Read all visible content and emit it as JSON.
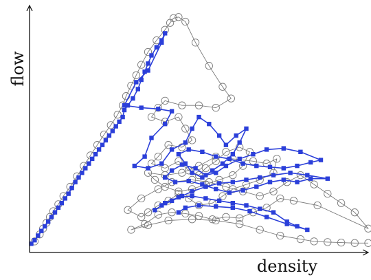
{
  "chart_data": {
    "type": "line",
    "title": "",
    "xlabel": "density",
    "ylabel": "flow",
    "xlim": [
      0,
      100
    ],
    "ylim": [
      0,
      100
    ],
    "xticks": [],
    "yticks": [],
    "grid": false,
    "legend": "none",
    "series": [
      {
        "key": "measured",
        "marker": "open-circle",
        "color": "#7a7a7a",
        "points": [
          [
            1.5,
            1.5
          ],
          [
            3.0,
            4.5
          ],
          [
            4.0,
            7.0
          ],
          [
            5.0,
            9.5
          ],
          [
            6.0,
            12.0
          ],
          [
            7.0,
            14.5
          ],
          [
            8.5,
            17.5
          ],
          [
            10.0,
            21.0
          ],
          [
            12.0,
            25.0
          ],
          [
            14.0,
            29.5
          ],
          [
            16.0,
            34.0
          ],
          [
            18.0,
            38.5
          ],
          [
            20.0,
            43.0
          ],
          [
            22.0,
            47.5
          ],
          [
            24.0,
            51.5
          ],
          [
            26.0,
            56.0
          ],
          [
            27.5,
            60.0
          ],
          [
            28.5,
            64.0
          ],
          [
            30.0,
            68.5
          ],
          [
            31.5,
            73.0
          ],
          [
            33.0,
            77.5
          ],
          [
            35.0,
            83.0
          ],
          [
            37.5,
            88.0
          ],
          [
            40.0,
            92.5
          ],
          [
            41.5,
            95.5
          ],
          [
            42.5,
            97.5
          ],
          [
            44.0,
            98.0
          ],
          [
            46.0,
            96.0
          ],
          [
            49.0,
            87.0
          ],
          [
            53.0,
            77.0
          ],
          [
            57.0,
            68.0
          ],
          [
            59.5,
            63.0
          ],
          [
            55.0,
            59.0
          ],
          [
            50.0,
            60.0
          ],
          [
            45.0,
            60.0
          ],
          [
            40.0,
            62.0
          ],
          [
            38.0,
            59.0
          ],
          [
            36.0,
            55.0
          ],
          [
            40.0,
            53.0
          ],
          [
            44.0,
            55.0
          ],
          [
            46.0,
            50.0
          ],
          [
            48.0,
            45.0
          ],
          [
            45.0,
            42.0
          ],
          [
            41.0,
            43.0
          ],
          [
            38.0,
            38.0
          ],
          [
            36.0,
            35.0
          ],
          [
            40.0,
            33.0
          ],
          [
            44.0,
            36.0
          ],
          [
            47.0,
            32.0
          ],
          [
            50.0,
            30.0
          ],
          [
            52.0,
            33.0
          ],
          [
            55.0,
            36.0
          ],
          [
            58.0,
            40.0
          ],
          [
            62.0,
            42.0
          ],
          [
            65.0,
            40.0
          ],
          [
            63.0,
            34.0
          ],
          [
            60.0,
            30.0
          ],
          [
            56.0,
            28.0
          ],
          [
            52.0,
            26.0
          ],
          [
            48.0,
            24.0
          ],
          [
            44.0,
            23.0
          ],
          [
            40.0,
            25.0
          ],
          [
            37.0,
            28.0
          ],
          [
            35.0,
            31.0
          ],
          [
            40.0,
            30.0
          ],
          [
            45.0,
            31.0
          ],
          [
            50.0,
            34.0
          ],
          [
            55.0,
            38.0
          ],
          [
            60.0,
            37.0
          ],
          [
            66.0,
            36.0
          ],
          [
            70.0,
            35.0
          ],
          [
            73.0,
            37.0
          ],
          [
            72.0,
            31.0
          ],
          [
            68.0,
            28.0
          ],
          [
            64.0,
            26.0
          ],
          [
            60.0,
            24.0
          ],
          [
            57.0,
            21.0
          ],
          [
            54.0,
            18.0
          ],
          [
            50.0,
            17.0
          ],
          [
            47.0,
            20.0
          ],
          [
            44.0,
            22.0
          ],
          [
            41.0,
            19.0
          ],
          [
            38.0,
            17.0
          ],
          [
            35.0,
            14.0
          ],
          [
            33.0,
            12.0
          ],
          [
            29.0,
            15.0
          ],
          [
            33.0,
            20.0
          ],
          [
            38.0,
            24.0
          ],
          [
            42.0,
            27.0
          ],
          [
            48.0,
            28.0
          ],
          [
            53.0,
            27.0
          ],
          [
            58.0,
            25.0
          ],
          [
            63.0,
            23.0
          ],
          [
            68.0,
            21.0
          ],
          [
            72.0,
            23.0
          ],
          [
            76.0,
            27.0
          ],
          [
            80.0,
            30.0
          ],
          [
            84.0,
            26.0
          ],
          [
            88.0,
            22.0
          ],
          [
            92.0,
            18.0
          ],
          [
            96.0,
            14.0
          ],
          [
            100.0,
            7.0
          ],
          [
            85.0,
            17.0
          ],
          [
            78.0,
            19.0
          ],
          [
            74.0,
            20.0
          ],
          [
            70.0,
            16.0
          ],
          [
            66.0,
            14.0
          ],
          [
            62.0,
            11.5
          ],
          [
            58.0,
            12.0
          ],
          [
            54.0,
            11.0
          ],
          [
            50.0,
            12.5
          ],
          [
            46.0,
            13.5
          ],
          [
            42.0,
            14.0
          ],
          [
            38.0,
            13.0
          ],
          [
            34.0,
            9.0
          ],
          [
            30.0,
            6.5
          ],
          [
            35.0,
            8.5
          ],
          [
            41.0,
            10.5
          ],
          [
            48.0,
            11.0
          ],
          [
            55.0,
            10.5
          ],
          [
            62.0,
            9.0
          ],
          [
            68.0,
            6.5
          ],
          [
            74.0,
            4.0
          ],
          [
            80.0,
            2.5
          ],
          [
            84.0,
            1.5
          ],
          [
            88.0,
            1.2
          ],
          [
            92.0,
            1.0
          ],
          [
            96.0,
            0.8
          ],
          [
            100.0,
            0.8
          ]
        ]
      },
      {
        "key": "simulated",
        "marker": "filled-square",
        "color": "#2b3fd9",
        "points": [
          [
            0.5,
            0.5
          ],
          [
            1.5,
            2.0
          ],
          [
            2.5,
            4.0
          ],
          [
            3.5,
            6.0
          ],
          [
            4.5,
            8.0
          ],
          [
            5.5,
            10.0
          ],
          [
            6.5,
            12.0
          ],
          [
            7.5,
            14.0
          ],
          [
            8.5,
            16.0
          ],
          [
            9.5,
            18.0
          ],
          [
            10.5,
            20.0
          ],
          [
            11.5,
            22.0
          ],
          [
            12.5,
            24.5
          ],
          [
            13.5,
            27.0
          ],
          [
            14.5,
            29.0
          ],
          [
            15.5,
            31.0
          ],
          [
            16.5,
            33.0
          ],
          [
            17.5,
            35.0
          ],
          [
            18.5,
            37.0
          ],
          [
            19.5,
            39.0
          ],
          [
            20.5,
            41.0
          ],
          [
            21.5,
            43.0
          ],
          [
            22.5,
            45.0
          ],
          [
            23.5,
            47.0
          ],
          [
            24.5,
            49.0
          ],
          [
            25.5,
            51.0
          ],
          [
            26.5,
            53.0
          ],
          [
            27.5,
            55.0
          ],
          [
            28.0,
            58.0
          ],
          [
            29.0,
            60.0
          ],
          [
            30.5,
            63.0
          ],
          [
            32.0,
            67.0
          ],
          [
            33.0,
            71.0
          ],
          [
            34.0,
            74.5
          ],
          [
            35.0,
            78.0
          ],
          [
            36.0,
            81.5
          ],
          [
            37.5,
            85.0
          ],
          [
            39.0,
            88.0
          ],
          [
            40.0,
            91.0
          ],
          [
            39.0,
            87.0
          ],
          [
            35.0,
            75.0
          ],
          [
            31.5,
            70.0
          ],
          [
            28.0,
            60.0
          ],
          [
            33.0,
            59.0
          ],
          [
            38.0,
            58.5
          ],
          [
            42.0,
            57.5
          ],
          [
            40.0,
            52.0
          ],
          [
            36.0,
            46.0
          ],
          [
            34.0,
            38.0
          ],
          [
            31.0,
            34.0
          ],
          [
            35.0,
            33.0
          ],
          [
            39.0,
            35.0
          ],
          [
            42.0,
            41.0
          ],
          [
            46.0,
            44.0
          ],
          [
            48.0,
            50.0
          ],
          [
            50.0,
            55.0
          ],
          [
            53.0,
            52.0
          ],
          [
            56.0,
            47.0
          ],
          [
            58.0,
            43.0
          ],
          [
            61.0,
            47.0
          ],
          [
            64.0,
            50.0
          ],
          [
            62.0,
            44.0
          ],
          [
            60.0,
            39.0
          ],
          [
            57.0,
            35.0
          ],
          [
            54.0,
            32.0
          ],
          [
            51.0,
            29.0
          ],
          [
            48.0,
            31.0
          ],
          [
            46.0,
            35.0
          ],
          [
            44.0,
            39.0
          ],
          [
            47.0,
            41.0
          ],
          [
            51.0,
            40.0
          ],
          [
            55.0,
            38.0
          ],
          [
            59.0,
            37.0
          ],
          [
            63.0,
            35.0
          ],
          [
            67.0,
            34.0
          ],
          [
            71.0,
            33.5
          ],
          [
            75.0,
            33.0
          ],
          [
            79.0,
            34.0
          ],
          [
            83.0,
            35.5
          ],
          [
            86.0,
            36.5
          ],
          [
            80.0,
            40.0
          ],
          [
            75.0,
            41.5
          ],
          [
            70.0,
            41.0
          ],
          [
            66.0,
            39.0
          ],
          [
            62.0,
            37.0
          ],
          [
            58.0,
            34.0
          ],
          [
            55.0,
            31.0
          ],
          [
            52.0,
            30.0
          ],
          [
            49.0,
            33.0
          ],
          [
            45.0,
            34.5
          ],
          [
            42.0,
            32.0
          ],
          [
            40.0,
            29.0
          ],
          [
            43.0,
            27.0
          ],
          [
            47.0,
            27.5
          ],
          [
            51.0,
            26.0
          ],
          [
            55.0,
            24.0
          ],
          [
            59.0,
            22.5
          ],
          [
            63.0,
            23.5
          ],
          [
            67.0,
            25.0
          ],
          [
            71.0,
            27.0
          ],
          [
            75.0,
            28.0
          ],
          [
            79.0,
            27.0
          ],
          [
            83.0,
            28.5
          ],
          [
            88.0,
            28.5
          ],
          [
            82.0,
            30.0
          ],
          [
            77.0,
            31.0
          ],
          [
            72.0,
            30.0
          ],
          [
            68.0,
            29.0
          ],
          [
            64.0,
            28.0
          ],
          [
            60.0,
            27.0
          ],
          [
            56.0,
            26.5
          ],
          [
            52.0,
            25.0
          ],
          [
            48.0,
            23.0
          ],
          [
            45.0,
            21.0
          ],
          [
            42.0,
            19.0
          ],
          [
            39.0,
            17.0
          ],
          [
            37.0,
            15.0
          ],
          [
            40.0,
            18.0
          ],
          [
            44.0,
            20.5
          ],
          [
            48.0,
            21.0
          ],
          [
            52.0,
            20.0
          ],
          [
            56.0,
            19.0
          ],
          [
            60.0,
            18.0
          ],
          [
            64.0,
            17.0
          ],
          [
            68.0,
            15.5
          ],
          [
            72.0,
            14.0
          ],
          [
            76.0,
            10.0
          ],
          [
            79.0,
            8.0
          ],
          [
            82.0,
            6.5
          ],
          [
            76.0,
            9.0
          ],
          [
            70.0,
            12.0
          ],
          [
            65.0,
            14.5
          ],
          [
            60.0,
            16.0
          ],
          [
            55.0,
            16.5
          ],
          [
            50.0,
            17.0
          ],
          [
            46.0,
            16.0
          ],
          [
            44.0,
            14.0
          ]
        ]
      }
    ]
  }
}
